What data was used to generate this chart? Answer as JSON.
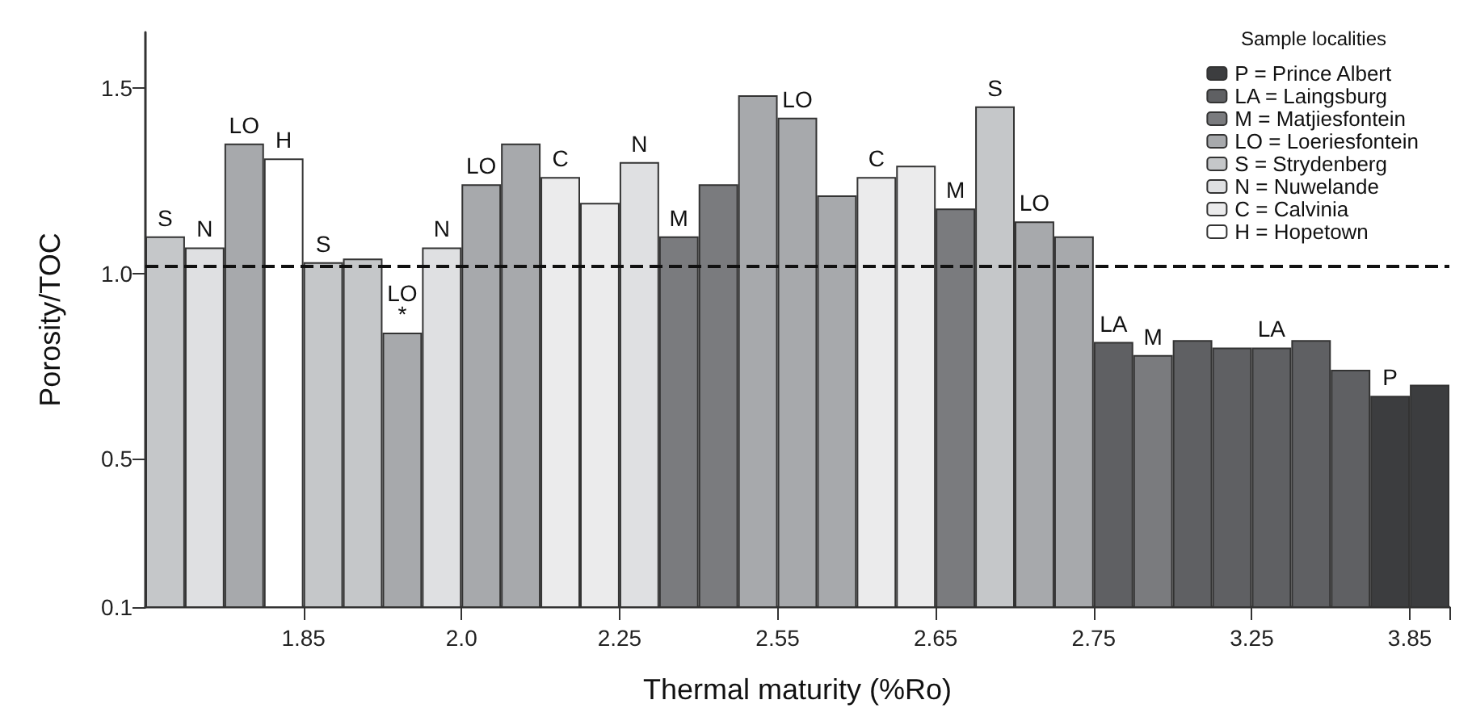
{
  "chart_data": {
    "type": "bar",
    "xlabel": "Thermal maturity (%Ro)",
    "ylabel": "Porosity/TOC",
    "legend_title": "Sample localities",
    "legend": "top right",
    "categories": [
      null,
      null,
      null,
      "1.85",
      null,
      null,
      null,
      "2.0",
      null,
      null,
      null,
      "2.25",
      null,
      null,
      null,
      "2.55",
      null,
      null,
      null,
      "2.65",
      null,
      null,
      null,
      "2.75",
      null,
      null,
      null,
      "3.25",
      null,
      null,
      null,
      "3.85",
      null
    ],
    "ylim": [
      0.1,
      1.65
    ],
    "yticks": [
      0.1,
      0.5,
      {
        "value": 1,
        "label": "1.0"
      },
      1.5
    ],
    "grid": false,
    "ref_lines": [
      {
        "axis": "y",
        "value": 1.02,
        "color": "#111111",
        "line_style": "dashed"
      }
    ],
    "series": [
      {
        "name": "P = Prince Albert",
        "color": "#3c3d3f",
        "values": [
          null,
          null,
          null,
          null,
          null,
          null,
          null,
          null,
          null,
          null,
          null,
          null,
          null,
          null,
          null,
          null,
          null,
          null,
          null,
          null,
          null,
          null,
          null,
          null,
          null,
          null,
          null,
          null,
          null,
          null,
          null,
          0.67,
          0.7
        ],
        "value_labels": [
          null,
          null,
          null,
          null,
          null,
          null,
          null,
          null,
          null,
          null,
          null,
          null,
          null,
          null,
          null,
          null,
          null,
          null,
          null,
          null,
          null,
          null,
          null,
          null,
          null,
          null,
          null,
          null,
          null,
          null,
          null,
          "P",
          null
        ]
      },
      {
        "name": "LA = Laingsburg",
        "color": "#5f6063",
        "values": [
          null,
          null,
          null,
          null,
          null,
          null,
          null,
          null,
          null,
          null,
          null,
          null,
          null,
          null,
          null,
          null,
          null,
          null,
          null,
          null,
          null,
          null,
          null,
          null,
          0.815,
          null,
          0.82,
          0.8,
          0.8,
          0.82,
          0.74,
          null,
          null
        ],
        "value_labels": [
          null,
          null,
          null,
          null,
          null,
          null,
          null,
          null,
          null,
          null,
          null,
          null,
          null,
          null,
          null,
          null,
          null,
          null,
          null,
          null,
          null,
          null,
          null,
          null,
          "LA",
          null,
          null,
          null,
          "LA",
          null,
          null,
          null,
          null
        ]
      },
      {
        "name": "M = Matjiesfontein",
        "color": "#7a7b7e",
        "values": [
          null,
          null,
          null,
          null,
          null,
          null,
          null,
          null,
          null,
          null,
          null,
          null,
          null,
          1.1,
          1.24,
          null,
          null,
          null,
          null,
          null,
          1.175,
          null,
          null,
          null,
          null,
          0.78,
          null,
          null,
          null,
          null,
          null,
          null,
          null
        ],
        "value_labels": [
          null,
          null,
          null,
          null,
          null,
          null,
          null,
          null,
          null,
          null,
          null,
          null,
          null,
          "M",
          null,
          null,
          null,
          null,
          null,
          null,
          "M",
          null,
          null,
          null,
          null,
          "M",
          null,
          null,
          null,
          null,
          null,
          null,
          null
        ]
      },
      {
        "name": "LO = Loeriesfontein",
        "color": "#a7a9ac",
        "values": [
          null,
          null,
          1.35,
          null,
          null,
          null,
          0.84,
          null,
          1.24,
          1.35,
          null,
          null,
          null,
          null,
          null,
          1.48,
          1.42,
          1.21,
          null,
          null,
          null,
          null,
          1.14,
          1.1,
          null,
          null,
          null,
          null,
          null,
          null,
          null,
          null,
          null
        ],
        "value_labels": [
          null,
          null,
          "LO",
          null,
          null,
          null,
          "LO\n*",
          null,
          "LO",
          null,
          null,
          null,
          null,
          null,
          null,
          null,
          "LO",
          null,
          null,
          null,
          null,
          null,
          "LO",
          null,
          null,
          null,
          null,
          null,
          null,
          null,
          null,
          null,
          null
        ]
      },
      {
        "name": "S = Strydenberg",
        "color": "#c5c7c9",
        "values": [
          1.1,
          null,
          null,
          null,
          1.03,
          1.04,
          null,
          null,
          null,
          null,
          null,
          null,
          null,
          null,
          null,
          null,
          null,
          null,
          null,
          null,
          null,
          1.45,
          null,
          null,
          null,
          null,
          null,
          null,
          null,
          null,
          null,
          null,
          null
        ],
        "value_labels": [
          "S",
          null,
          null,
          null,
          "S",
          null,
          null,
          null,
          null,
          null,
          null,
          null,
          null,
          null,
          null,
          null,
          null,
          null,
          null,
          null,
          null,
          "S",
          null,
          null,
          null,
          null,
          null,
          null,
          null,
          null,
          null,
          null,
          null
        ]
      },
      {
        "name": "N = Nuwelande",
        "color": "#dfe0e2",
        "values": [
          null,
          1.07,
          null,
          null,
          null,
          null,
          null,
          1.07,
          null,
          null,
          null,
          null,
          1.3,
          null,
          null,
          null,
          null,
          null,
          null,
          null,
          null,
          null,
          null,
          null,
          null,
          null,
          null,
          null,
          null,
          null,
          null,
          null,
          null
        ],
        "value_labels": [
          null,
          "N",
          null,
          null,
          null,
          null,
          null,
          "N",
          null,
          null,
          null,
          null,
          "N",
          null,
          null,
          null,
          null,
          null,
          null,
          null,
          null,
          null,
          null,
          null,
          null,
          null,
          null,
          null,
          null,
          null,
          null,
          null,
          null
        ]
      },
      {
        "name": "C = Calvinia",
        "color": "#ebebec",
        "values": [
          null,
          null,
          null,
          null,
          null,
          null,
          null,
          null,
          null,
          null,
          1.26,
          1.19,
          null,
          null,
          null,
          null,
          null,
          null,
          1.26,
          1.29,
          null,
          null,
          null,
          null,
          null,
          null,
          null,
          null,
          null,
          null,
          null,
          null,
          null
        ],
        "value_labels": [
          null,
          null,
          null,
          null,
          null,
          null,
          null,
          null,
          null,
          null,
          "C",
          null,
          null,
          null,
          null,
          null,
          null,
          null,
          "C",
          null,
          null,
          null,
          null,
          null,
          null,
          null,
          null,
          null,
          null,
          null,
          null,
          null,
          null
        ]
      },
      {
        "name": "H = Hopetown",
        "color": "#ffffff",
        "values": [
          null,
          null,
          null,
          1.31,
          null,
          null,
          null,
          null,
          null,
          null,
          null,
          null,
          null,
          null,
          null,
          null,
          null,
          null,
          null,
          null,
          null,
          null,
          null,
          null,
          null,
          null,
          null,
          null,
          null,
          null,
          null,
          null,
          null
        ],
        "value_labels": [
          null,
          null,
          null,
          "H",
          null,
          null,
          null,
          null,
          null,
          null,
          null,
          null,
          null,
          null,
          null,
          null,
          null,
          null,
          null,
          null,
          null,
          null,
          null,
          null,
          null,
          null,
          null,
          null,
          null,
          null,
          null,
          null,
          null
        ]
      }
    ]
  }
}
